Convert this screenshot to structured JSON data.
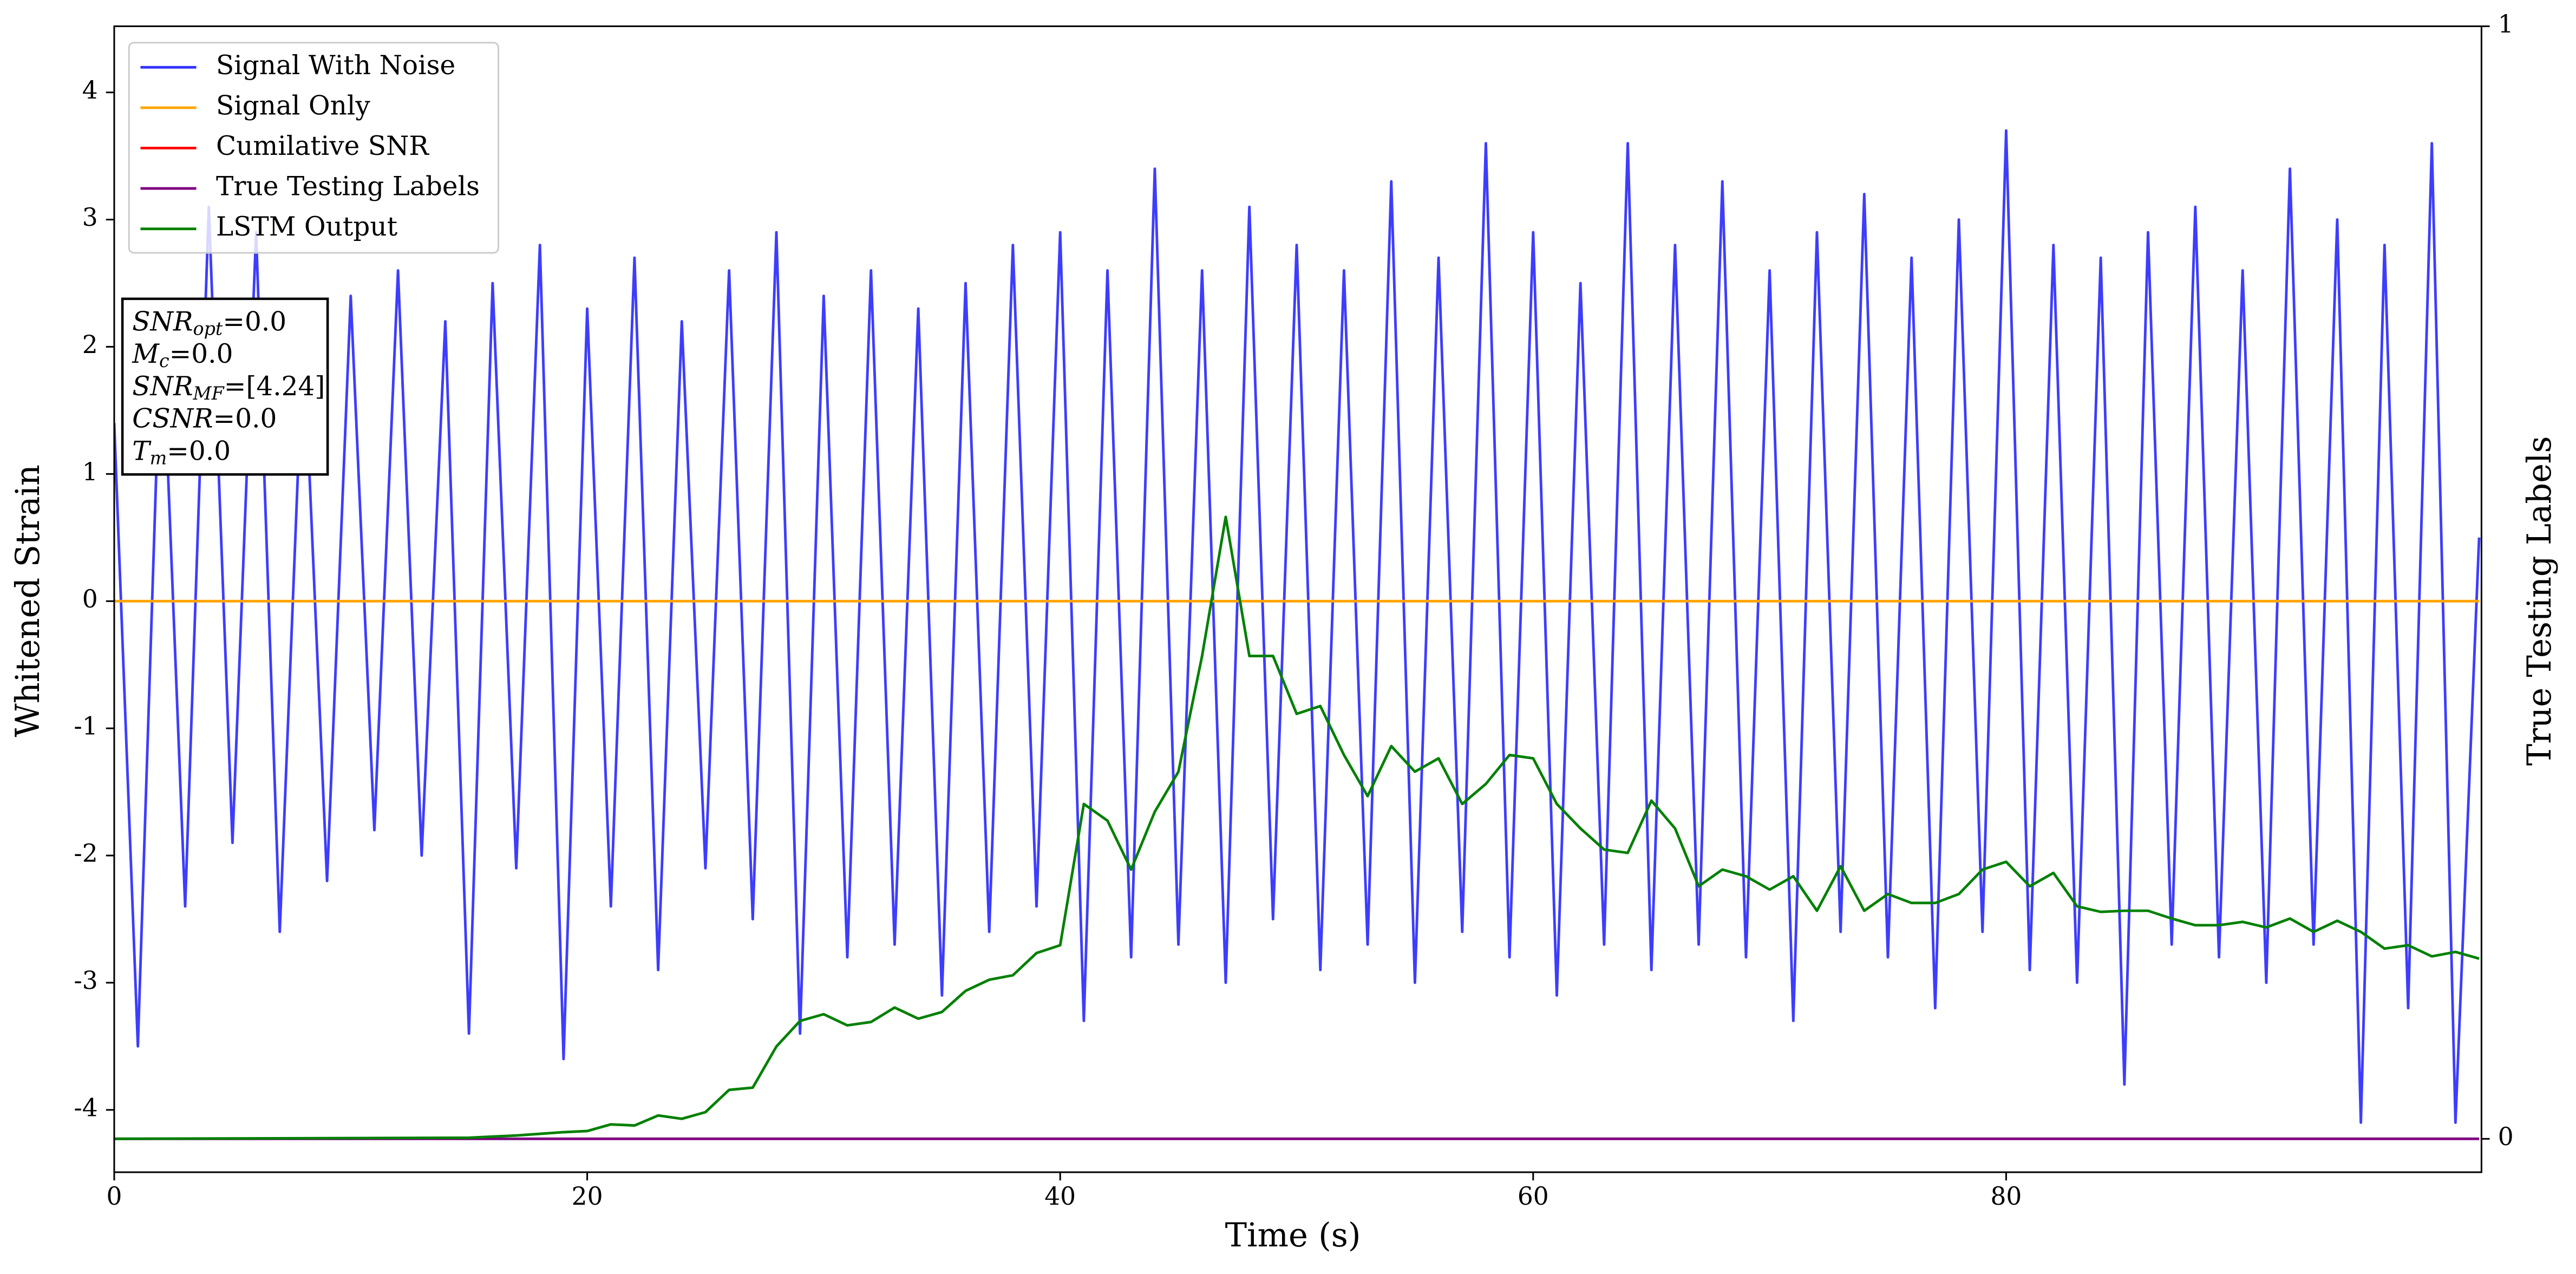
{
  "chart_data": {
    "type": "line",
    "xlabel": "Time (s)",
    "ylabel": "Whitened Strain",
    "y2label": "True Testing Labels",
    "xlim": [
      0,
      100.1
    ],
    "xticks": [
      0,
      20,
      40,
      60,
      80
    ],
    "ylim": [
      -4.49,
      4.52
    ],
    "yticks": [
      -4,
      -3,
      -2,
      -1,
      0,
      1,
      2,
      3,
      4
    ],
    "y2lim": [
      -0.03,
      1
    ],
    "y2ticks": [
      0,
      1
    ],
    "legend": "upper left",
    "annotation": [
      {
        "main": "SNR",
        "sub": "opt",
        "rest": "=0.0"
      },
      {
        "main": "M",
        "sub": "c",
        "rest": "=0.0"
      },
      {
        "main": "SNR",
        "sub": "MF",
        "rest": "=[4.24]"
      },
      {
        "main": "CSNR",
        "rest": "=0.0"
      },
      {
        "main": "T",
        "sub": "m",
        "rest": "=0.0"
      }
    ],
    "series": [
      {
        "name": "Signal With Noise",
        "color": "#3333ff",
        "x": [
          0,
          1,
          2,
          3,
          4,
          5,
          6,
          7,
          8,
          9,
          10,
          11,
          12,
          13,
          14,
          15,
          16,
          17,
          18,
          19,
          20,
          21,
          22,
          23,
          24,
          25,
          26,
          27,
          28,
          29,
          30,
          31,
          32,
          33,
          34,
          35,
          36,
          37,
          38,
          39,
          40,
          41,
          42,
          43,
          44,
          45,
          46,
          47,
          48,
          49,
          50,
          51,
          52,
          53,
          54,
          55,
          56,
          57,
          58,
          59,
          60,
          61,
          62,
          63,
          64,
          65,
          66,
          67,
          68,
          69,
          70,
          71,
          72,
          73,
          74,
          75,
          76,
          77,
          78,
          79,
          80,
          81,
          82,
          83,
          84,
          85,
          86,
          87,
          88,
          89,
          90,
          91,
          92,
          93,
          94,
          95,
          96,
          97,
          98,
          99,
          100
        ],
        "values": [
          1.4,
          -3.5,
          2.3,
          -2.4,
          3.1,
          -1.9,
          2.9,
          -2.6,
          2.1,
          -2.2,
          2.4,
          -1.8,
          2.6,
          -2.0,
          2.2,
          -3.4,
          2.5,
          -2.1,
          2.8,
          -3.6,
          2.3,
          -2.4,
          2.7,
          -2.9,
          2.2,
          -2.1,
          2.6,
          -2.5,
          2.9,
          -3.4,
          2.4,
          -2.8,
          2.6,
          -2.7,
          2.3,
          -3.1,
          2.5,
          -2.6,
          2.8,
          -2.4,
          2.9,
          -3.3,
          2.6,
          -2.8,
          3.4,
          -2.7,
          2.6,
          -3.0,
          3.1,
          -2.5,
          2.8,
          -2.9,
          2.6,
          -2.7,
          3.3,
          -3.0,
          2.7,
          -2.6,
          3.6,
          -2.8,
          2.9,
          -3.1,
          2.5,
          -2.7,
          3.6,
          -2.9,
          2.8,
          -2.7,
          3.3,
          -2.8,
          2.6,
          -3.3,
          2.9,
          -2.6,
          3.2,
          -2.8,
          2.7,
          -3.2,
          3.0,
          -2.6,
          3.7,
          -2.9,
          2.8,
          -3.0,
          2.7,
          -3.8,
          2.9,
          -2.7,
          3.1,
          -2.8,
          2.6,
          -3.0,
          3.4,
          -2.7,
          3.0,
          -4.1,
          2.8,
          -3.2,
          3.6,
          -4.1,
          0.5
        ]
      },
      {
        "name": "Signal Only",
        "color": "#ffa500",
        "x": [
          0,
          100
        ],
        "values": [
          0,
          0
        ]
      },
      {
        "name": "Cumilative SNR",
        "color": "#ff0000",
        "x": [],
        "values": []
      },
      {
        "name": "True Testing Labels",
        "color": "#800080",
        "axis": "y2",
        "x": [
          0,
          100
        ],
        "values": [
          0,
          0
        ]
      },
      {
        "name": "LSTM Output",
        "color": "#008000",
        "axis": "y2",
        "x": [
          0,
          15,
          17,
          19,
          20,
          21,
          22,
          23,
          24,
          25,
          26,
          27,
          28,
          29,
          30,
          31,
          32,
          33,
          34,
          35,
          36,
          37,
          38,
          39,
          40,
          41,
          42,
          43,
          44,
          45,
          46,
          47,
          48,
          49,
          50,
          51,
          52,
          53,
          54,
          55,
          56,
          57,
          58,
          59,
          60,
          61,
          62,
          63,
          64,
          65,
          66,
          67,
          68,
          69,
          70,
          71,
          72,
          73,
          74,
          75,
          76,
          77,
          78,
          79,
          80,
          81,
          82,
          83,
          84,
          85,
          86,
          87,
          88,
          89,
          90,
          91,
          92,
          93,
          94,
          95,
          96,
          97,
          98,
          99,
          100
        ],
        "values": [
          0,
          0.001,
          0.003,
          0.006,
          0.007,
          0.013,
          0.012,
          0.021,
          0.018,
          0.024,
          0.044,
          0.046,
          0.083,
          0.106,
          0.112,
          0.102,
          0.105,
          0.118,
          0.108,
          0.114,
          0.133,
          0.143,
          0.147,
          0.167,
          0.174,
          0.301,
          0.286,
          0.242,
          0.294,
          0.33,
          0.434,
          0.559,
          0.434,
          0.434,
          0.382,
          0.389,
          0.345,
          0.308,
          0.353,
          0.33,
          0.342,
          0.301,
          0.319,
          0.345,
          0.342,
          0.301,
          0.279,
          0.26,
          0.257,
          0.304,
          0.279,
          0.227,
          0.242,
          0.236,
          0.224,
          0.236,
          0.205,
          0.245,
          0.205,
          0.22,
          0.212,
          0.212,
          0.22,
          0.242,
          0.249,
          0.227,
          0.239,
          0.209,
          0.204,
          0.205,
          0.205,
          0.198,
          0.192,
          0.192,
          0.195,
          0.19,
          0.198,
          0.186,
          0.196,
          0.186,
          0.171,
          0.174,
          0.164,
          0.168,
          0.162
        ]
      }
    ]
  }
}
